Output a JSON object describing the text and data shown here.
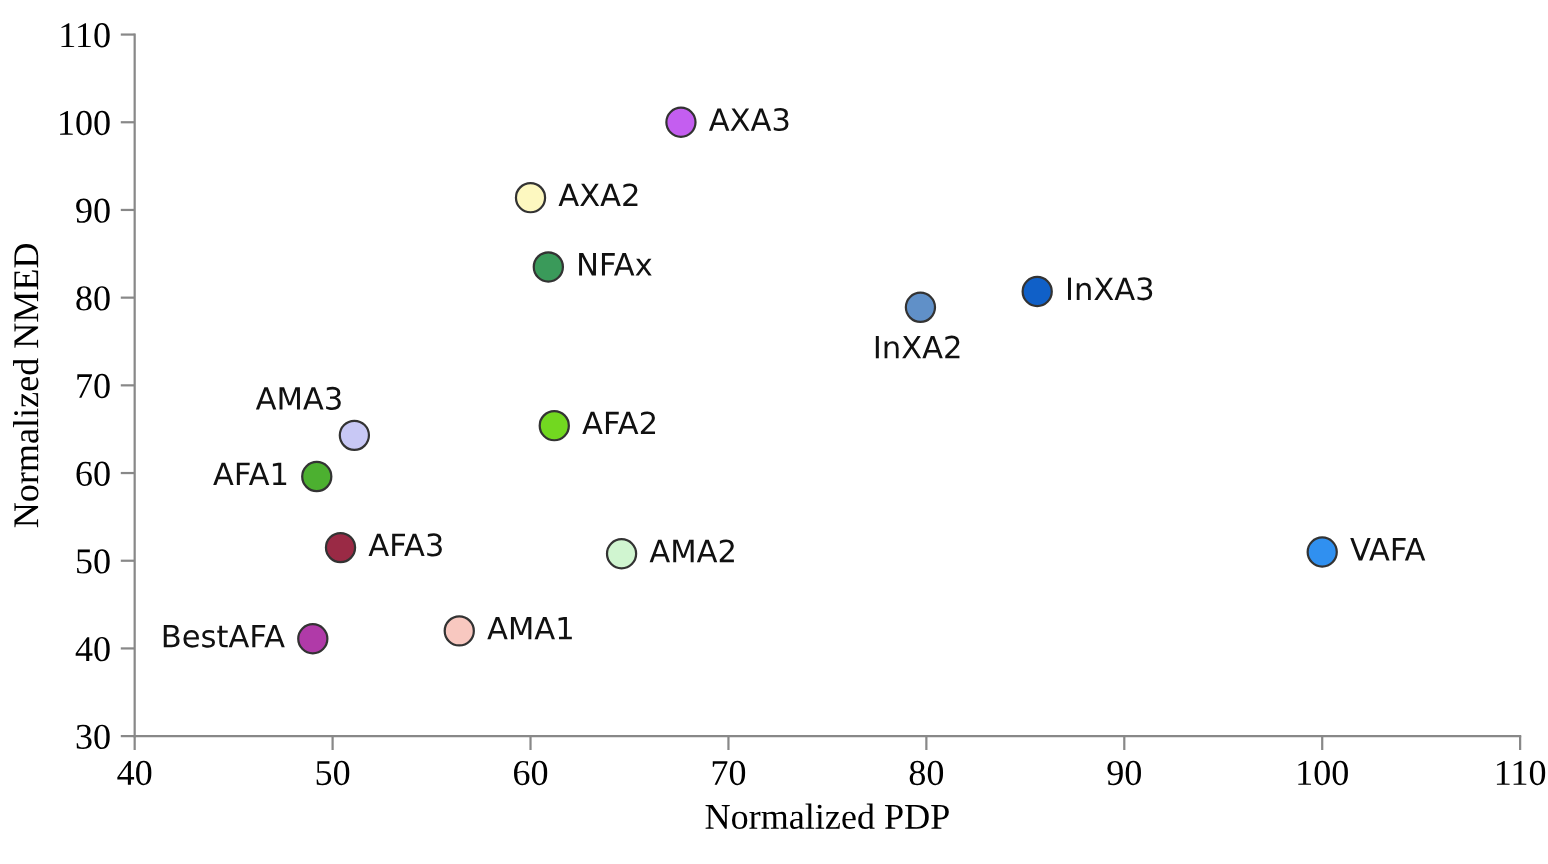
{
  "chart_data": {
    "type": "scatter",
    "xlabel": "Normalized PDP",
    "ylabel": "Normalized NMED",
    "xlim": [
      40,
      110
    ],
    "xticks": [
      40,
      50,
      60,
      70,
      80,
      90,
      100,
      110
    ],
    "ylim": [
      30,
      110
    ],
    "yticks": [
      30,
      40,
      50,
      60,
      70,
      80,
      90,
      100,
      110
    ],
    "grid": false,
    "marker": "circle",
    "series": [
      {
        "name": "AXA3",
        "color": "#c45ef0",
        "x": [
          67.6
        ],
        "values": [
          100
        ]
      },
      {
        "name": "AXA2",
        "color": "#fdf8c0",
        "x": [
          60.0
        ],
        "values": [
          91.4
        ]
      },
      {
        "name": "NFAx",
        "color": "#3a9a5a",
        "x": [
          60.9
        ],
        "values": [
          83.5
        ]
      },
      {
        "name": "InXA3",
        "color": "#1060c8",
        "x": [
          85.6
        ],
        "values": [
          80.7
        ]
      },
      {
        "name": "InXA2",
        "color": "#6090c8",
        "x": [
          79.7
        ],
        "values": [
          78.9
        ]
      },
      {
        "name": "AMA3",
        "color": "#c8c8f5",
        "x": [
          51.1
        ],
        "values": [
          64.3
        ]
      },
      {
        "name": "AFA2",
        "color": "#72d820",
        "x": [
          61.2
        ],
        "values": [
          65.4
        ]
      },
      {
        "name": "AFA1",
        "color": "#4cb030",
        "x": [
          49.2
        ],
        "values": [
          59.6
        ]
      },
      {
        "name": "AFA3",
        "color": "#9a2a45",
        "x": [
          50.4
        ],
        "values": [
          51.5
        ]
      },
      {
        "name": "AMA2",
        "color": "#d0f5d0",
        "x": [
          64.6
        ],
        "values": [
          50.8
        ]
      },
      {
        "name": "VAFA",
        "color": "#3090f0",
        "x": [
          100
        ],
        "values": [
          51
        ]
      },
      {
        "name": "AMA1",
        "color": "#f8c8c0",
        "x": [
          56.4
        ],
        "values": [
          42.0
        ]
      },
      {
        "name": "BestAFA",
        "color": "#b03aa8",
        "x": [
          49.0
        ],
        "values": [
          41.1
        ]
      }
    ]
  }
}
